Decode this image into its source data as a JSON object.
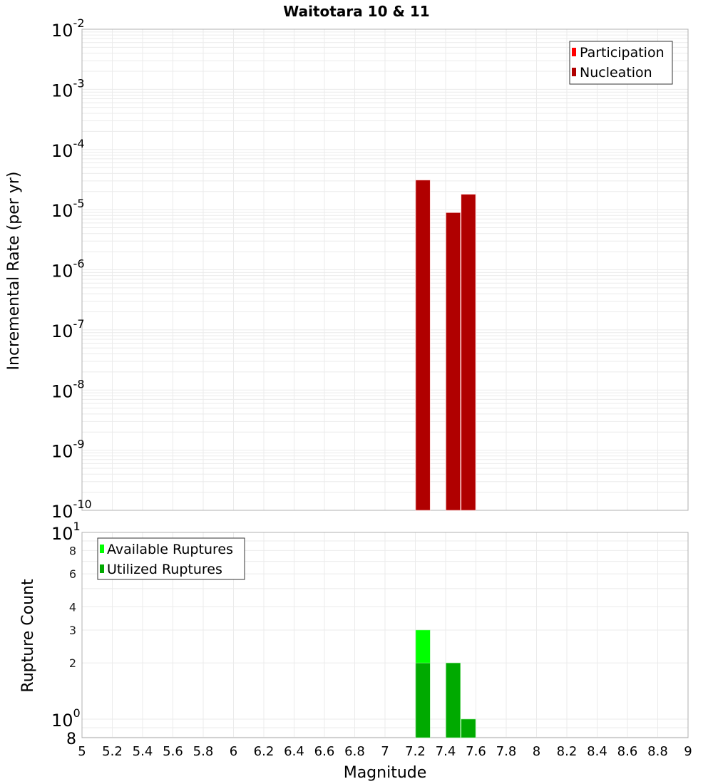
{
  "title": "Waitotara 10 & 11",
  "chart_data": [
    {
      "type": "bar",
      "title": "Waitotara 10 & 11",
      "xlabel": "Magnitude",
      "ylabel": "Incremental Rate (per yr)",
      "yscale": "log",
      "ylim": [
        1e-10,
        0.01
      ],
      "xlim": [
        5,
        9
      ],
      "grid": true,
      "legend_position": "top-right",
      "y_tick_labels": [
        "10^-2",
        "10^-3",
        "10^-4",
        "10^-5",
        "10^-6",
        "10^-7",
        "10^-8",
        "10^-9",
        "10^-10"
      ],
      "bar_width": 0.1,
      "series": [
        {
          "name": "Participation",
          "color": "#ff0000",
          "x": [
            7.25,
            7.45,
            7.55
          ],
          "values": [
            3.1e-05,
            8.9e-06,
            1.8e-05
          ]
        },
        {
          "name": "Nucleation",
          "color": "#b00000",
          "x": [
            7.25,
            7.45,
            7.55
          ],
          "values": [
            3.1e-05,
            8.9e-06,
            1.8e-05
          ]
        }
      ]
    },
    {
      "type": "bar",
      "xlabel": "Magnitude",
      "ylabel": "Rupture Count",
      "yscale": "log",
      "ylim": [
        0.8,
        10
      ],
      "xlim": [
        5,
        9
      ],
      "grid": true,
      "legend_position": "top-left",
      "x_tick_labels": [
        "5",
        "5.2",
        "5.4",
        "5.6",
        "5.8",
        "6",
        "6.2",
        "6.4",
        "6.6",
        "6.8",
        "7",
        "7.2",
        "7.4",
        "7.6",
        "7.8",
        "8",
        "8.2",
        "8.4",
        "8.6",
        "8.8",
        "9"
      ],
      "y_tick_labels": [
        "10^1",
        "8",
        "6",
        "4",
        "3",
        "2",
        "10^0",
        "8"
      ],
      "bar_width": 0.1,
      "series": [
        {
          "name": "Available Ruptures",
          "color": "#00ff00",
          "x": [
            7.25,
            7.45,
            7.55
          ],
          "values": [
            3,
            2,
            1
          ]
        },
        {
          "name": "Utilized Ruptures",
          "color": "#00aa00",
          "x": [
            7.25,
            7.45,
            7.55
          ],
          "values": [
            2,
            2,
            1
          ]
        }
      ]
    }
  ]
}
